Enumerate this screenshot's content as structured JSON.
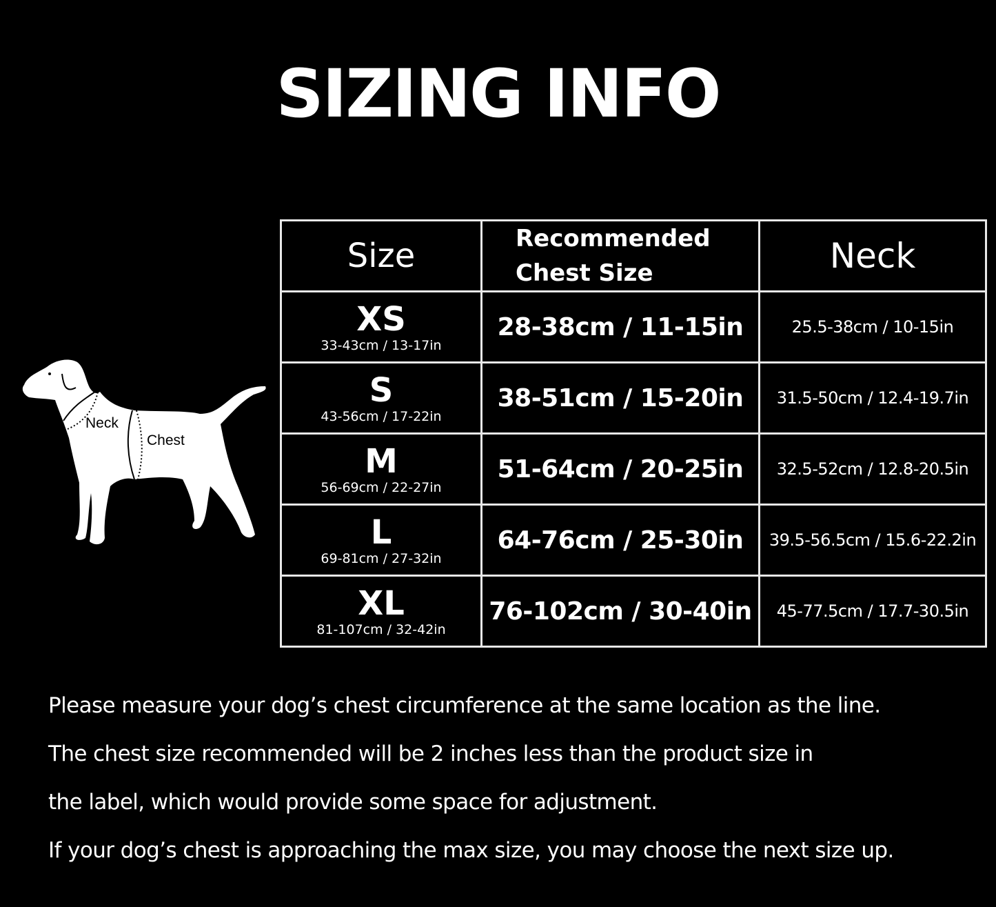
{
  "title": "SIZING INFO",
  "diagram": {
    "neck_label": "Neck",
    "chest_label": "Chest"
  },
  "table": {
    "headers": {
      "size": "Size",
      "chest_line1": "Recommended",
      "chest_line2": "Chest Size",
      "neck": "Neck"
    },
    "rows": [
      {
        "size": "XS",
        "product": "33-43cm / 13-17in",
        "chest": "28-38cm / 11-15in",
        "neck": "25.5-38cm / 10-15in"
      },
      {
        "size": "S",
        "product": "43-56cm / 17-22in",
        "chest": "38-51cm / 15-20in",
        "neck": "31.5-50cm / 12.4-19.7in"
      },
      {
        "size": "M",
        "product": "56-69cm / 22-27in",
        "chest": "51-64cm / 20-25in",
        "neck": "32.5-52cm / 12.8-20.5in"
      },
      {
        "size": "L",
        "product": "69-81cm / 27-32in",
        "chest": "64-76cm / 25-30in",
        "neck": "39.5-56.5cm / 15.6-22.2in"
      },
      {
        "size": "XL",
        "product": "81-107cm / 32-42in",
        "chest": "76-102cm / 30-40in",
        "neck": "45-77.5cm / 17.7-30.5in"
      }
    ]
  },
  "notes": [
    "Please measure your dog’s chest circumference at the same location as the line.",
    "The chest size recommended will be 2 inches less than the product size in",
    "the label, which would provide some space for adjustment.",
    "If your dog’s chest is approaching the max size, you may choose the next size up."
  ]
}
